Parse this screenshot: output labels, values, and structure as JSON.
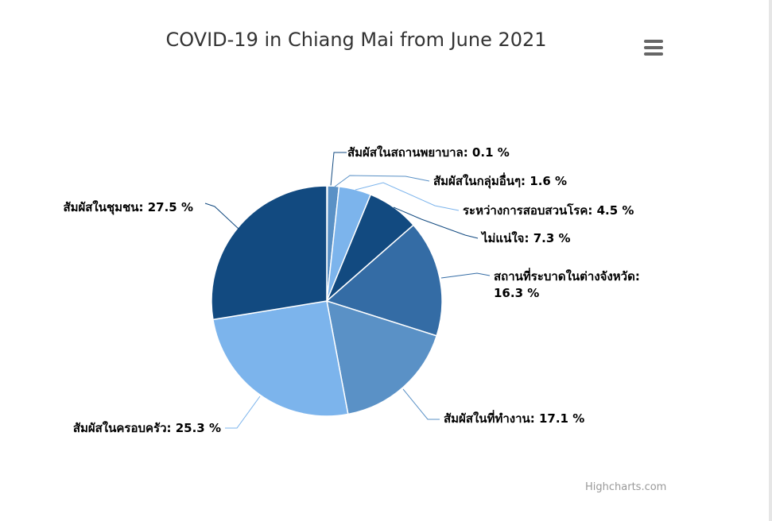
{
  "chart_data": {
    "type": "pie",
    "title": "COVID-19 in Chiang Mai from June 2021",
    "value_suffix": " %",
    "slices": [
      {
        "name": "สัมผัสในสถานพยาบาล",
        "value": 0.1,
        "color": "#124a80"
      },
      {
        "name": "สัมผัสในกลุ่มอื่นๆ",
        "value": 1.6,
        "color": "#5a91c6"
      },
      {
        "name": "ระหว่างการสอบสวนโรค",
        "value": 4.5,
        "color": "#7cb4ec"
      },
      {
        "name": "ไม่แน่ใจ",
        "value": 7.3,
        "color": "#124a80"
      },
      {
        "name": "สถานที่ระบาดในต่างจังหวัด",
        "value": 16.3,
        "color": "#346ca5"
      },
      {
        "name": "สัมผัสในที่ทำงาน",
        "value": 17.1,
        "color": "#5a91c6"
      },
      {
        "name": "สัมผัสในครอบครัว",
        "value": 25.3,
        "color": "#7cb4ec"
      },
      {
        "name": "สัมผัสในชุมชน",
        "value": 27.5,
        "color": "#124a80"
      }
    ]
  },
  "menu": {
    "icon": "hamburger-menu-icon",
    "color": "#666666"
  },
  "credits": "Highcharts.com"
}
